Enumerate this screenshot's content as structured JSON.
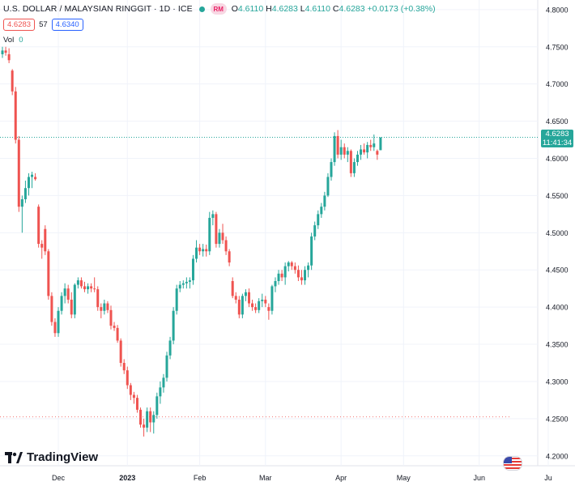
{
  "header": {
    "symbol_title": "U.S. DOLLAR / MALAYSIAN RINGGIT · 1D · ICE",
    "currency_badge": "RM",
    "ohlc": {
      "o_label": "O",
      "o_value": "4.6110",
      "h_label": "H",
      "h_value": "4.6283",
      "l_label": "L",
      "l_value": "4.6110",
      "c_label": "C",
      "c_value": "4.6283",
      "change": "+0.0173 (+0.38%)"
    },
    "bid": "4.6283",
    "spread": "57",
    "ask": "4.6340",
    "volume_label": "Vol",
    "volume_value": "0"
  },
  "price_tag": {
    "price": "4.6283",
    "countdown": "11:41:34"
  },
  "branding": {
    "name": "TradingView"
  },
  "colors": {
    "up": "#26a69a",
    "down": "#ef5350",
    "text": "#131722",
    "axis_text": "#131722",
    "grid": "#f0f3fa"
  },
  "chart_data": {
    "type": "candlestick",
    "y_ticks": [
      4.8,
      4.75,
      4.7,
      4.65,
      4.6,
      4.55,
      4.5,
      4.45,
      4.4,
      4.35,
      4.3,
      4.25,
      4.2
    ],
    "y_tick_labels": [
      "4.8000",
      "4.7500",
      "4.7000",
      "4.6500",
      "4.6000",
      "4.5500",
      "4.5000",
      "4.4500",
      "4.4000",
      "4.3500",
      "4.3000",
      "4.2500",
      "4.2000"
    ],
    "ylim": [
      4.1867,
      4.8129
    ],
    "x_labels": [
      {
        "label": "Dec",
        "index": 17
      },
      {
        "label": "2023",
        "index": 38
      },
      {
        "label": "Feb",
        "index": 60
      },
      {
        "label": "Mar",
        "index": 80
      },
      {
        "label": "Apr",
        "index": 103
      },
      {
        "label": "May",
        "index": 122
      },
      {
        "label": "Jun",
        "index": 145
      },
      {
        "label": "Ju",
        "index": 166
      }
    ],
    "current_price": 4.6283,
    "reference_line": 4.2525,
    "candles": [
      [
        4.74,
        4.75,
        4.735,
        4.745
      ],
      [
        4.745,
        4.75,
        4.738,
        4.742
      ],
      [
        4.74,
        4.748,
        4.728,
        4.732
      ],
      [
        4.718,
        4.72,
        4.685,
        4.69
      ],
      [
        4.69,
        4.696,
        4.62,
        4.625
      ],
      [
        4.625,
        4.63,
        4.528,
        4.535
      ],
      [
        4.535,
        4.55,
        4.5,
        4.545
      ],
      [
        4.545,
        4.57,
        4.54,
        4.56
      ],
      [
        4.56,
        4.58,
        4.55,
        4.575
      ],
      [
        4.575,
        4.582,
        4.56,
        4.578
      ],
      [
        4.575,
        4.58,
        4.57,
        4.572
      ],
      [
        4.535,
        4.538,
        4.48,
        4.485
      ],
      [
        4.485,
        4.49,
        4.465,
        4.48
      ],
      [
        4.505,
        4.51,
        4.47,
        4.475
      ],
      [
        4.475,
        4.478,
        4.41,
        4.415
      ],
      [
        4.415,
        4.42,
        4.375,
        4.38
      ],
      [
        4.38,
        4.385,
        4.36,
        4.365
      ],
      [
        4.365,
        4.4,
        4.36,
        4.395
      ],
      [
        4.395,
        4.42,
        4.39,
        4.415
      ],
      [
        4.415,
        4.432,
        4.405,
        4.425
      ],
      [
        4.425,
        4.43,
        4.405,
        4.41
      ],
      [
        4.41,
        4.42,
        4.385,
        4.39
      ],
      [
        4.39,
        4.432,
        4.385,
        4.43
      ],
      [
        4.43,
        4.44,
        4.425,
        4.436
      ],
      [
        4.436,
        4.44,
        4.425,
        4.428
      ],
      [
        4.428,
        4.434,
        4.42,
        4.424
      ],
      [
        4.424,
        4.432,
        4.418,
        4.428
      ],
      [
        4.428,
        4.432,
        4.42,
        4.425
      ],
      [
        4.425,
        4.44,
        4.42,
        4.424
      ],
      [
        4.424,
        4.428,
        4.395,
        4.4
      ],
      [
        4.4,
        4.405,
        4.385,
        4.395
      ],
      [
        4.395,
        4.41,
        4.39,
        4.405
      ],
      [
        4.405,
        4.408,
        4.392,
        4.396
      ],
      [
        4.396,
        4.402,
        4.37,
        4.375
      ],
      [
        4.375,
        4.38,
        4.368,
        4.372
      ],
      [
        4.372,
        4.376,
        4.352,
        4.355
      ],
      [
        4.355,
        4.358,
        4.32,
        4.325
      ],
      [
        4.325,
        4.33,
        4.31,
        4.315
      ],
      [
        4.315,
        4.32,
        4.29,
        4.295
      ],
      [
        4.295,
        4.298,
        4.275,
        4.282
      ],
      [
        4.282,
        4.286,
        4.27,
        4.278
      ],
      [
        4.278,
        4.282,
        4.258,
        4.262
      ],
      [
        4.262,
        4.265,
        4.238,
        4.242
      ],
      [
        4.242,
        4.25,
        4.226,
        4.238
      ],
      [
        4.238,
        4.265,
        4.232,
        4.26
      ],
      [
        4.26,
        4.265,
        4.232,
        4.245
      ],
      [
        4.245,
        4.26,
        4.23,
        4.255
      ],
      [
        4.255,
        4.285,
        4.25,
        4.28
      ],
      [
        4.28,
        4.3,
        4.27,
        4.292
      ],
      [
        4.292,
        4.31,
        4.285,
        4.305
      ],
      [
        4.305,
        4.34,
        4.3,
        4.335
      ],
      [
        4.335,
        4.36,
        4.33,
        4.355
      ],
      [
        4.355,
        4.4,
        4.35,
        4.395
      ],
      [
        4.395,
        4.43,
        4.39,
        4.425
      ],
      [
        4.425,
        4.435,
        4.42,
        4.43
      ],
      [
        4.43,
        4.436,
        4.425,
        4.432
      ],
      [
        4.432,
        4.44,
        4.425,
        4.434
      ],
      [
        4.434,
        4.44,
        4.425,
        4.436
      ],
      [
        4.436,
        4.47,
        4.43,
        4.465
      ],
      [
        4.465,
        4.49,
        4.46,
        4.48
      ],
      [
        4.48,
        4.485,
        4.47,
        4.475
      ],
      [
        4.475,
        4.485,
        4.468,
        4.478
      ],
      [
        4.478,
        4.484,
        4.468,
        4.475
      ],
      [
        4.475,
        4.528,
        4.47,
        4.52
      ],
      [
        4.52,
        4.53,
        4.51,
        4.525
      ],
      [
        4.525,
        4.528,
        4.48,
        4.485
      ],
      [
        4.485,
        4.505,
        4.48,
        4.5
      ],
      [
        4.5,
        4.512,
        4.485,
        4.49
      ],
      [
        4.49,
        4.495,
        4.47,
        4.475
      ],
      [
        4.475,
        4.478,
        4.455,
        4.46
      ],
      [
        4.435,
        4.44,
        4.412,
        4.415
      ],
      [
        4.415,
        4.42,
        4.405,
        4.41
      ],
      [
        4.41,
        4.415,
        4.385,
        4.39
      ],
      [
        4.39,
        4.418,
        4.385,
        4.415
      ],
      [
        4.415,
        4.424,
        4.408,
        4.42
      ],
      [
        4.42,
        4.425,
        4.4,
        4.405
      ],
      [
        4.405,
        4.41,
        4.395,
        4.4
      ],
      [
        4.4,
        4.405,
        4.392,
        4.396
      ],
      [
        4.396,
        4.412,
        4.392,
        4.408
      ],
      [
        4.408,
        4.418,
        4.4,
        4.41
      ],
      [
        4.41,
        4.415,
        4.4,
        4.405
      ],
      [
        4.4,
        4.405,
        4.383,
        4.395
      ],
      [
        4.395,
        4.43,
        4.39,
        4.428
      ],
      [
        4.428,
        4.44,
        4.42,
        4.435
      ],
      [
        4.435,
        4.45,
        4.43,
        4.445
      ],
      [
        4.445,
        4.45,
        4.435,
        4.44
      ],
      [
        4.44,
        4.46,
        4.43,
        4.455
      ],
      [
        4.455,
        4.462,
        4.448,
        4.46
      ],
      [
        4.46,
        4.462,
        4.45,
        4.455
      ],
      [
        4.455,
        4.46,
        4.445,
        4.45
      ],
      [
        4.45,
        4.456,
        4.435,
        4.44
      ],
      [
        4.44,
        4.45,
        4.43,
        4.436
      ],
      [
        4.436,
        4.455,
        4.43,
        4.45
      ],
      [
        4.45,
        4.46,
        4.44,
        4.456
      ],
      [
        4.456,
        4.5,
        4.45,
        4.495
      ],
      [
        4.495,
        4.515,
        4.49,
        4.51
      ],
      [
        4.51,
        4.53,
        4.505,
        4.525
      ],
      [
        4.525,
        4.54,
        4.52,
        4.535
      ],
      [
        4.535,
        4.555,
        4.53,
        4.55
      ],
      [
        4.55,
        4.58,
        4.548,
        4.575
      ],
      [
        4.575,
        4.6,
        4.57,
        4.595
      ],
      [
        4.595,
        4.635,
        4.59,
        4.63
      ],
      [
        4.63,
        4.638,
        4.6,
        4.605
      ],
      [
        4.605,
        4.625,
        4.598,
        4.615
      ],
      [
        4.615,
        4.62,
        4.6,
        4.605
      ],
      [
        4.605,
        4.615,
        4.595,
        4.61
      ],
      [
        4.61,
        4.612,
        4.575,
        4.58
      ],
      [
        4.58,
        4.6,
        4.575,
        4.595
      ],
      [
        4.595,
        4.61,
        4.59,
        4.605
      ],
      [
        4.605,
        4.618,
        4.598,
        4.612
      ],
      [
        4.612,
        4.62,
        4.605,
        4.608
      ],
      [
        4.608,
        4.622,
        4.6,
        4.618
      ],
      [
        4.618,
        4.625,
        4.61,
        4.615
      ],
      [
        4.615,
        4.632,
        4.61,
        4.62
      ],
      [
        4.61,
        4.612,
        4.598,
        4.605
      ],
      [
        4.611,
        4.6283,
        4.611,
        4.6283
      ]
    ]
  }
}
